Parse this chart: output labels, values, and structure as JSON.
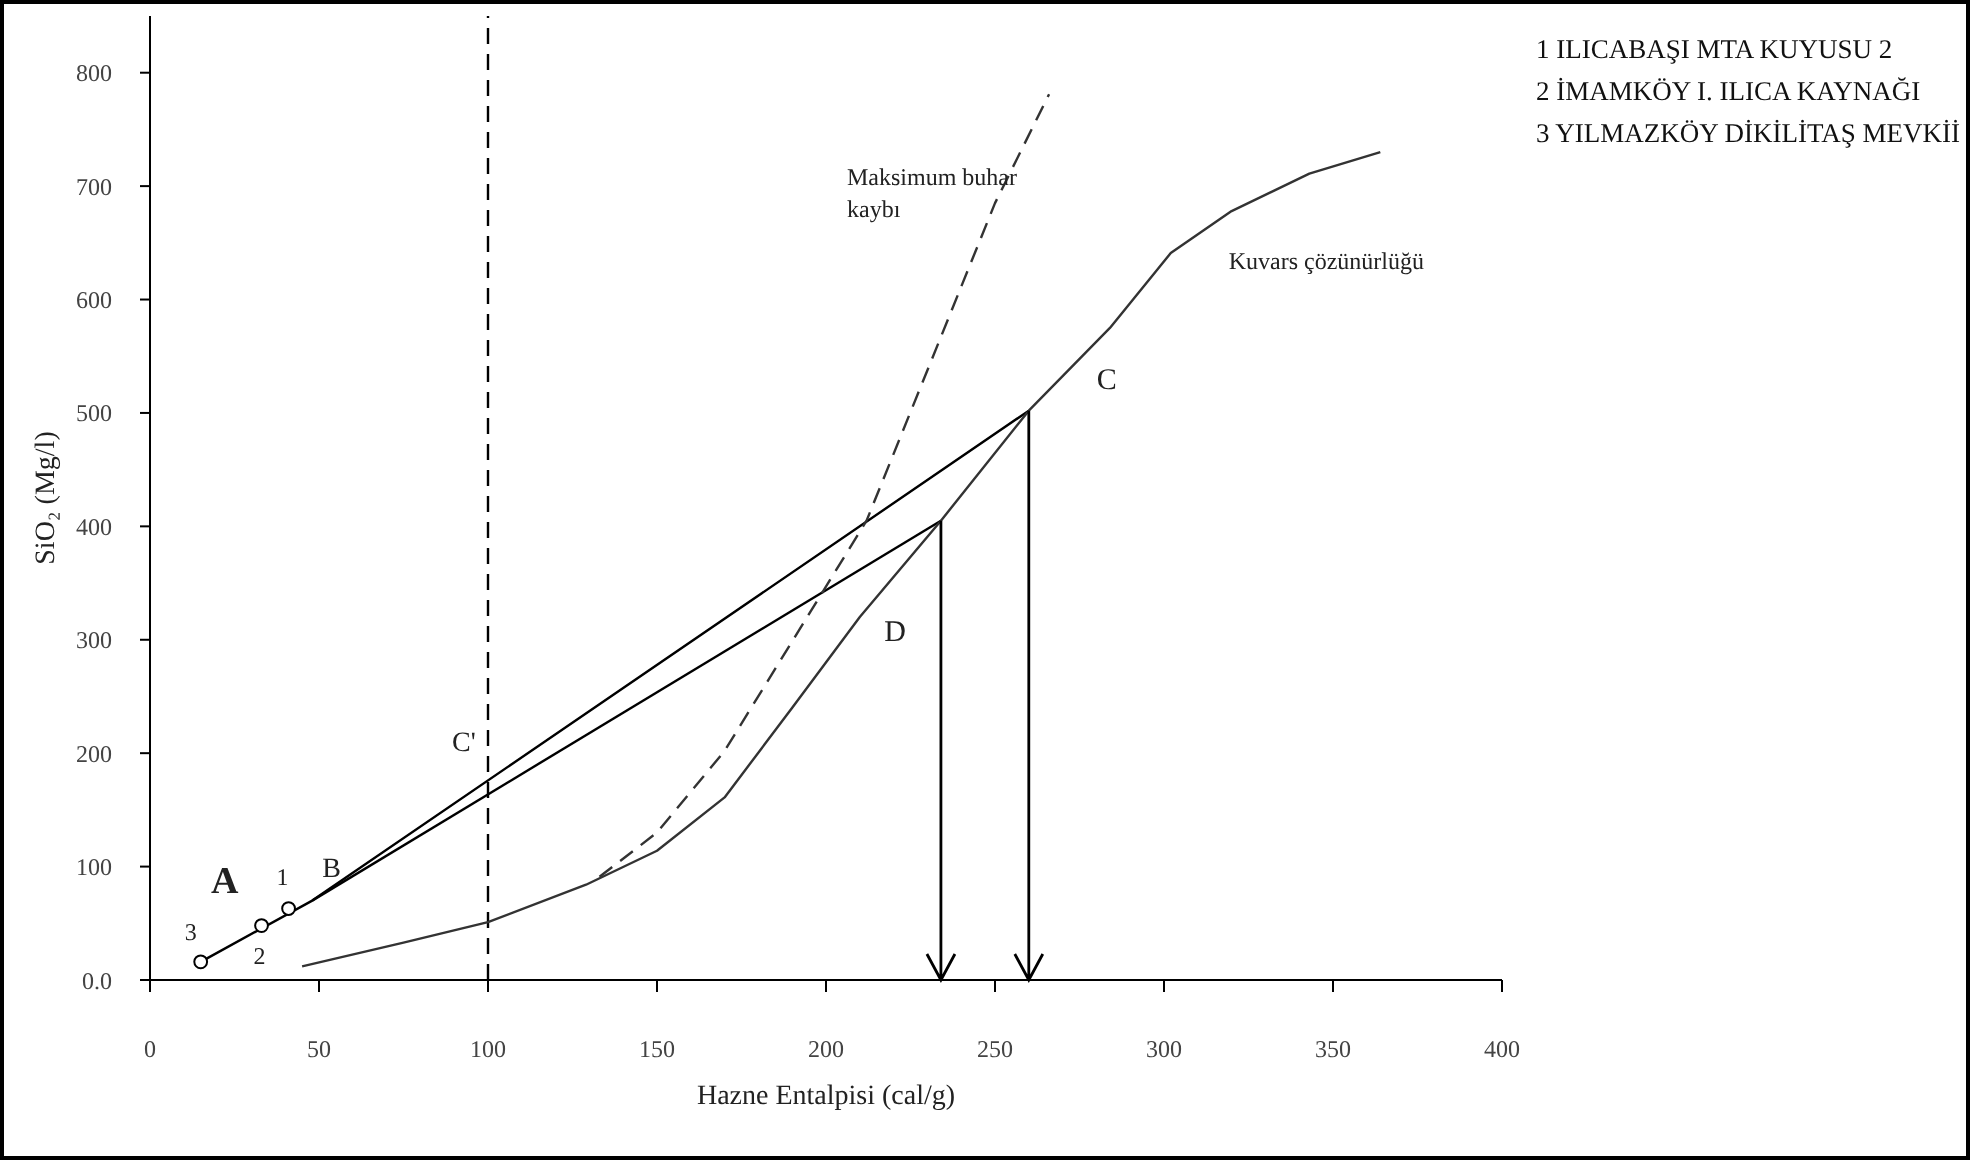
{
  "chart_data": {
    "type": "line",
    "xlabel": "Hazne Entalpisi (cal/g)",
    "ylabel": "SiO₂ (Mg/l)",
    "xlim": [
      0,
      400
    ],
    "xticks": [
      0,
      50,
      100,
      150,
      200,
      250,
      300,
      350,
      400
    ],
    "ylim": [
      0,
      850
    ],
    "yticks": [
      {
        "value": 0,
        "label": "0.0"
      },
      100,
      200,
      300,
      400,
      500,
      600,
      700,
      800
    ],
    "series": [
      {
        "color": "#000000",
        "x": [
          15,
          48,
          260
        ],
        "values": [
          16,
          70,
          502
        ]
      },
      {
        "color": "#000000",
        "x": [
          48,
          234
        ],
        "values": [
          70,
          405
        ]
      },
      {
        "color": "#333333",
        "x": [
          45,
          75,
          100,
          129,
          150,
          170,
          190,
          210,
          234,
          260,
          284,
          302,
          320,
          343,
          364
        ],
        "values": [
          12,
          33,
          51,
          84,
          114,
          161,
          240,
          320,
          405,
          502,
          575,
          641,
          678,
          711,
          730
        ]
      },
      {
        "color": "#333333",
        "line_style": "dashed",
        "x": [
          133,
          150,
          170,
          194,
          212,
          250,
          266
        ],
        "values": [
          91,
          130,
          202,
          318,
          405,
          685,
          781
        ]
      },
      {
        "type": "scatter",
        "color": "#000000",
        "marker": "circle",
        "x": [
          15,
          33,
          41
        ],
        "values": [
          16,
          48,
          63
        ]
      }
    ],
    "ref_lines": [
      {
        "axis": "x",
        "value": 100,
        "color": "#000000",
        "line_style": "dashed"
      }
    ],
    "annotations": [
      {
        "text": "Maksimum buhar\nkaybı",
        "x": 250,
        "y": 685
      },
      {
        "text": "Kuvars çözünürlüğü",
        "x": 302,
        "y": 641
      },
      {
        "text": "C",
        "x": 260,
        "y": 502
      },
      {
        "text": "D",
        "x": 222,
        "y": 362
      },
      {
        "text": "C'",
        "x": 100,
        "y": 200
      },
      {
        "text": "A",
        "x": 24,
        "y": 31
      },
      {
        "text": "1",
        "x": 41,
        "y": 63
      },
      {
        "text": "B",
        "x": 48,
        "y": 70
      },
      {
        "text": "3",
        "x": 15,
        "y": 16
      },
      {
        "text": "2",
        "x": 33,
        "y": 48
      },
      "1 ILICABAŞI  MTA KUYUSU 2",
      "2 İMAMKÖY I. ILICA KAYNAĞI",
      "3 YILMAZKÖY DİKİLİTAŞ MEVKİİ"
    ]
  }
}
